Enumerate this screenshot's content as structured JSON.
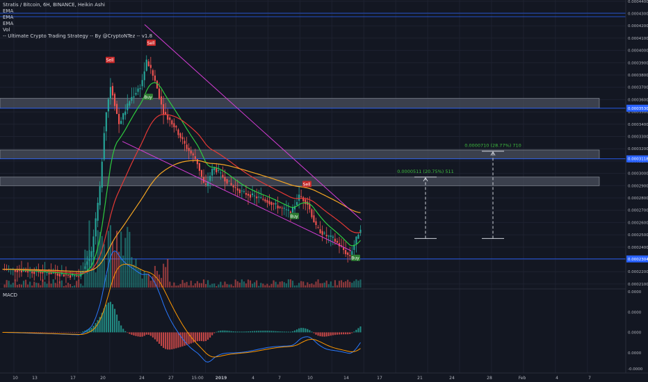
{
  "chart_data": {
    "type": "candlestick",
    "title": "Stratis / Bitcoin, 6H, BINANCE, Heikin Ashi",
    "indicators": [
      "EMA",
      "EMA",
      "EMA",
      "Vol",
      "-- Ultimate Crypto Trading Strategy -- By @CryptoNTez -- v1.8"
    ],
    "price_axis": {
      "ticks": [
        "0.0004400",
        "0.0004300",
        "0.0004200",
        "0.0004100",
        "0.0004000",
        "0.0003900",
        "0.0003800",
        "0.0003700",
        "0.0003600",
        "0.0003500",
        "0.0003400",
        "0.0003300",
        "0.0003200",
        "0.0003100",
        "0.0003000",
        "0.0002900",
        "0.0002800",
        "0.0002700",
        "0.0002600",
        "0.0002500",
        "0.0002400",
        "0.0002300",
        "0.0002200",
        "0.0002100"
      ],
      "highlighted": [
        {
          "value": 0.000353,
          "label": "0.0003530"
        },
        {
          "value": 0.0003118,
          "label": "0.0003118"
        },
        {
          "value": 0.0002304,
          "label": "0.0002304"
        }
      ]
    },
    "time_axis": [
      "10",
      "13",
      "17",
      "20",
      "24",
      "27",
      "15:00",
      "2019",
      "4",
      "7",
      "10",
      "14",
      "17",
      "21",
      "24",
      "28",
      "Feb",
      "4",
      "7"
    ],
    "signals": [
      {
        "label": "Sell",
        "type": "sell",
        "value": 0.000392
      },
      {
        "label": "Sell",
        "type": "sell",
        "value": 0.000406
      },
      {
        "label": "Buy",
        "type": "buy",
        "value": 0.000362
      },
      {
        "label": "Sell",
        "type": "sell",
        "value": 0.000291
      },
      {
        "label": "Buy",
        "type": "buy",
        "value": 0.000265
      },
      {
        "label": "Buy",
        "type": "buy",
        "value": 0.000231
      }
    ],
    "zones": [
      {
        "low": 0.000353,
        "high": 0.000361
      },
      {
        "low": 0.0003118,
        "high": 0.000319
      },
      {
        "low": 0.00029,
        "high": 0.000297
      }
    ],
    "targets": [
      {
        "label": "0.0000511 (20.75%) 511",
        "from": 0.000247,
        "to": 0.000297
      },
      {
        "label": "0.0000710 (28.77%) 710",
        "from": 0.000247,
        "to": 0.000318
      }
    ],
    "ranges": {
      "price": [
        0.000206,
        0.000441
      ],
      "macd": [
        -3e-05,
        3e-05
      ]
    },
    "macd": {
      "label": "MACD",
      "ticks": [
        "0.0000",
        "0.0000",
        "0.0000",
        "0.0000",
        "-0.0000"
      ]
    },
    "colors": {
      "up": "#26a69a",
      "down": "#ef5350",
      "ema_fast": "#2ecc40",
      "ema_mid": "#e53935",
      "ema_slow": "#f5a623",
      "trendline": "#d63dd6",
      "level_line": "#2962ff",
      "target": "#3fbf3f"
    }
  }
}
